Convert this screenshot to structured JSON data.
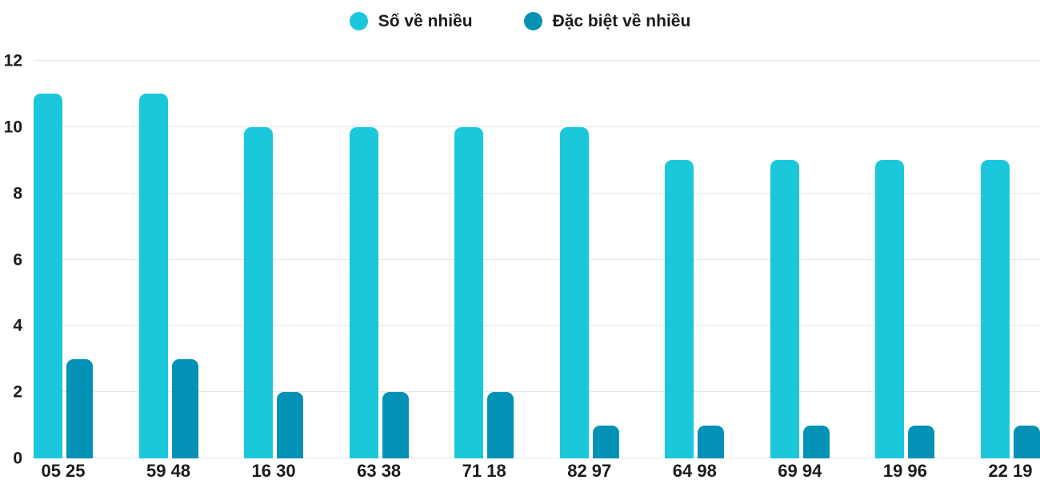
{
  "chart_data": {
    "type": "bar",
    "title": "",
    "categories": [
      "05 25",
      "59 48",
      "16 30",
      "63 38",
      "71 18",
      "82 97",
      "64 98",
      "69 94",
      "19 96",
      "22 19"
    ],
    "series": [
      {
        "name": "Số về nhiều",
        "color": "#1bc7db",
        "values": [
          11,
          11,
          10,
          10,
          10,
          10,
          9,
          9,
          9,
          9
        ]
      },
      {
        "name": "Đặc biệt về nhiều",
        "color": "#0392b5",
        "values": [
          3,
          3,
          2,
          2,
          2,
          1,
          1,
          1,
          1,
          1
        ]
      }
    ],
    "xlabel": "",
    "ylabel": "",
    "ylim": [
      0,
      12
    ],
    "yticks": [
      0,
      2,
      4,
      6,
      8,
      10,
      12
    ],
    "grid": true,
    "legend_position": "top-center",
    "gridline_color": "#e6e6e6",
    "text_color": "#1b1b1b"
  }
}
